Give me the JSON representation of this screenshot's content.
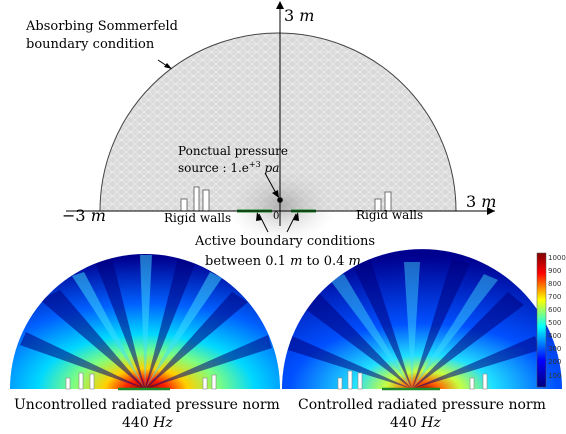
{
  "top": {
    "boundary_label_line1": "Absorbing Sommerfeld",
    "boundary_label_line2": "boundary condition",
    "source_line1": "Ponctual pressure",
    "source_line2_prefix": "source : 1.e",
    "source_exp": "+3",
    "source_unit": "pa",
    "axis_top_value": "3",
    "axis_top_unit": "m",
    "axis_right_value": "3",
    "axis_right_unit": "m",
    "axis_left_value": "−3",
    "axis_left_unit": "m",
    "origin_label": "0",
    "walls_left": "Rigid walls",
    "walls_right": "Rigid walls",
    "active_line1": "Active boundary conditions",
    "active_line2_a": "between 0.1",
    "active_unit_a": "m",
    "active_line2_b": "to 0.4",
    "active_unit_b": "m"
  },
  "bottom_left": {
    "caption": "Uncontrolled radiated pressure norm",
    "freq_value": "440",
    "freq_unit": "Hz"
  },
  "bottom_right": {
    "caption": "Controlled radiated pressure norm",
    "freq_value": "440",
    "freq_unit": "Hz"
  },
  "colorbar": {
    "ticks": [
      "1000",
      "900",
      "800",
      "700",
      "600",
      "500",
      "400",
      "300",
      "200",
      "100"
    ],
    "colors": [
      "#00007f",
      "#0000ff",
      "#00a0ff",
      "#00ffff",
      "#7fff7f",
      "#ffff00",
      "#ff7f00",
      "#ff0000",
      "#7f0000"
    ]
  }
}
